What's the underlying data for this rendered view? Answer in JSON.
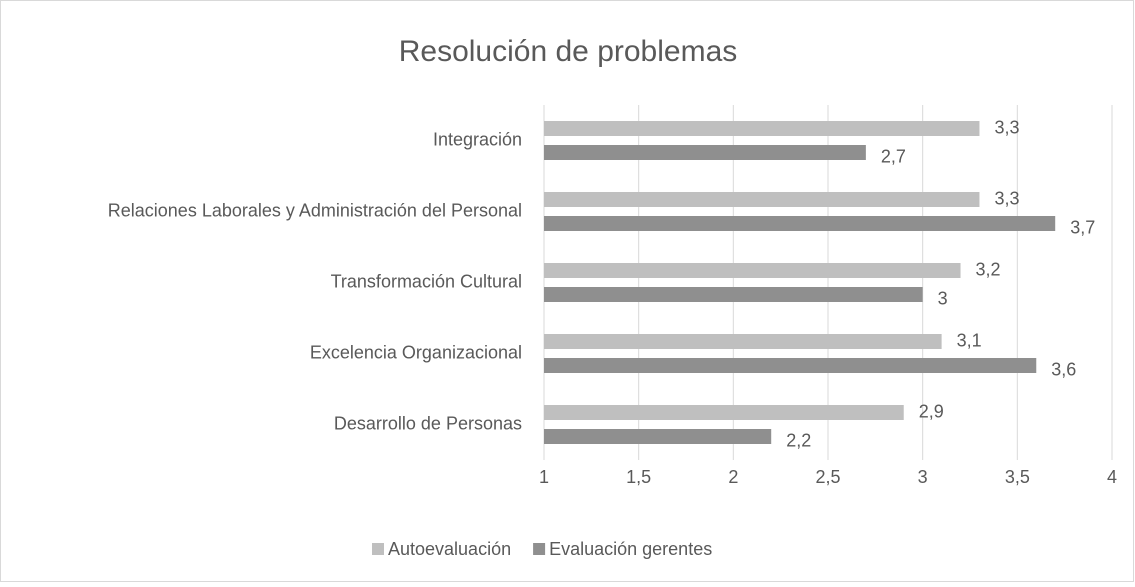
{
  "chart_data": {
    "type": "hbar",
    "title": "Resolución de problemas",
    "categories": [
      "Integración",
      "Relaciones Laborales y Administración del Personal",
      "Transformación Cultural",
      "Excelencia Organizacional",
      "Desarrollo de Personas"
    ],
    "series": [
      {
        "name": "Autoevaluación",
        "color": "#bfbfbf",
        "values": [
          3.3,
          3.3,
          3.2,
          3.1,
          2.9
        ],
        "value_labels": [
          "3,3",
          "3,3",
          "3,2",
          "3,1",
          "2,9"
        ]
      },
      {
        "name": "Evaluación gerentes",
        "color": "#8f8f8f",
        "values": [
          2.7,
          3.7,
          3,
          3.6,
          2.2
        ],
        "value_labels": [
          "2,7",
          "3,7",
          "3",
          "3,6",
          "2,2"
        ]
      }
    ],
    "xlim": [
      1,
      4
    ],
    "xticks": [
      1,
      {
        "value": 1.5,
        "label": "1,5"
      },
      2,
      {
        "value": 2.5,
        "label": "2,5"
      },
      3,
      {
        "value": 3.5,
        "label": "3,5"
      },
      4
    ],
    "grid": true,
    "legend": "bottom"
  }
}
